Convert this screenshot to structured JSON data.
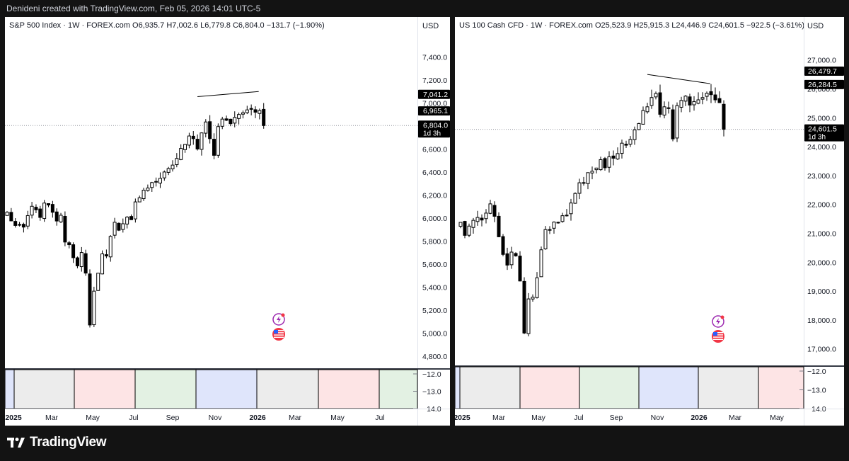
{
  "header": {
    "text": "Denideni created with TradingView.com, Feb 05, 2026 14:01 UTC-5"
  },
  "footer": {
    "brand": "TradingView"
  },
  "colors": {
    "background": "#131313",
    "bull_body": "#ffffff",
    "bear_body": "#000000",
    "separator_band": "#363a45",
    "badge": "#000000",
    "sessions": [
      "#ececec",
      "#fde4e5",
      "#e3f1e3",
      "#dfe5fb",
      "#ececec"
    ]
  },
  "icons": [
    "lightning-icon",
    "us-flag-icon",
    "tradingview-logo-icon"
  ],
  "chart_data": [
    {
      "type": "candlestick",
      "title": "S&P 500 Index · 1W · FOREX.com",
      "ohlc_label": {
        "o": "O6,935.7",
        "h": "H7,002.6",
        "l": "L6,779.8",
        "c": "C6,804.0",
        "chg": "−131.7 (−1.90%)"
      },
      "currency": "USD",
      "y_ticks": [
        7400,
        7200,
        7000,
        6800,
        6600,
        6400,
        6200,
        6000,
        5800,
        5600,
        5400,
        5200,
        5000,
        4800
      ],
      "y_tick_labels": [
        "7,400.0",
        "7,200.0",
        "7,000.0",
        "6,800.0",
        "6,600.0",
        "6,400.0",
        "6,200.0",
        "6,000.0",
        "5,800.0",
        "5,600.0",
        "5,400.0",
        "5,200.0",
        "5,000.0",
        "4,800.0"
      ],
      "ylim": [
        4780,
        7600
      ],
      "price_badges": [
        {
          "value": 7041.2,
          "label": "7,041.2"
        },
        {
          "value": 6965.1,
          "label": "6,965.1"
        },
        {
          "value": 6804.0,
          "label": "6,804.0",
          "sub": "1d 3h"
        }
      ],
      "trendline": [
        {
          "date": "2025-10-27",
          "value": 7055
        },
        {
          "date": "2026-02-02",
          "value": 7100
        }
      ],
      "x_labels": [
        "2025",
        "Mar",
        "May",
        "Jul",
        "Sep",
        "Nov",
        "2026",
        "Mar",
        "May",
        "Jul"
      ],
      "indicator_ticks": [
        "−12.0",
        "−13.0",
        "−14.0"
      ],
      "weekly": {
        "start": "2024-12-09",
        "close": [
          6051,
          5975,
          5935,
          5943,
          5921,
          6021,
          6102,
          6071,
          6005,
          6130,
          6113,
          6050,
          5974,
          6024,
          5791,
          5768,
          5655,
          5584,
          5700,
          5521,
          5070,
          5364,
          5520,
          5688,
          5670,
          5840,
          5963,
          5894,
          5950,
          6008,
          5985,
          6140,
          6176,
          6242,
          6261,
          6308,
          6312,
          6345,
          6400,
          6430,
          6460,
          6518,
          6605,
          6640,
          6713,
          6690,
          6600,
          6740,
          6835,
          6690,
          6545,
          6795,
          6860,
          6850,
          6820,
          6875,
          6900,
          6915,
          6940,
          6945,
          6920,
          6935,
          6804
        ]
      }
    },
    {
      "type": "candlestick",
      "title": "US 100 Cash CFD · 1W · FOREX.com",
      "ohlc_label": {
        "o": "O25,523.9",
        "h": "H25,915.3",
        "l": "L24,446.9",
        "c": "C24,601.5",
        "chg": "−922.5 (−3.61%)"
      },
      "currency": "USD",
      "y_ticks": [
        27000,
        26000,
        25000,
        24000,
        23000,
        22000,
        21000,
        20000,
        19000,
        18000,
        17000
      ],
      "y_tick_labels": [
        "27,000.0",
        "26,000.0",
        "25,000.0",
        "24,000.0",
        "23,000.0",
        "22,000.0",
        "21,000.0",
        "20,000.0",
        "19,000.0",
        "18,000.0",
        "17,000.0"
      ],
      "ylim": [
        16600,
        27900
      ],
      "price_badges": [
        {
          "value": 26479.7,
          "label": "26,479.7"
        },
        {
          "value": 26284.5,
          "label": "26,284.5"
        },
        {
          "value": 24601.5,
          "label": "24,601.5",
          "sub": "1d 3h"
        }
      ],
      "trendline": [
        {
          "date": "2025-10-27",
          "value": 26500
        },
        {
          "date": "2026-02-02",
          "value": 26180
        }
      ],
      "x_labels": [
        "2025",
        "Mar",
        "May",
        "Jul",
        "Sep",
        "Nov",
        "2026",
        "Mar",
        "May"
      ],
      "indicator_ticks": [
        "−12.0",
        "−13.0",
        "−14.0"
      ],
      "weekly": {
        "start": "2024-12-23",
        "close": [
          21380,
          20930,
          21250,
          21450,
          21550,
          21460,
          21700,
          22020,
          21590,
          20880,
          20270,
          19900,
          20350,
          20220,
          19350,
          17550,
          18730,
          18790,
          19460,
          20430,
          21130,
          21130,
          21390,
          21380,
          21610,
          21630,
          22050,
          22380,
          22750,
          22750,
          23100,
          23150,
          23260,
          23550,
          23270,
          23650,
          23600,
          23760,
          24120,
          24050,
          24250,
          24580,
          24800,
          25250,
          25380,
          25700,
          25840,
          25120,
          25380,
          25320,
          24270,
          25420,
          25600,
          25750,
          25440,
          25560,
          25620,
          25700,
          25850,
          25800,
          25620,
          25523.9,
          24601.5
        ]
      }
    }
  ]
}
